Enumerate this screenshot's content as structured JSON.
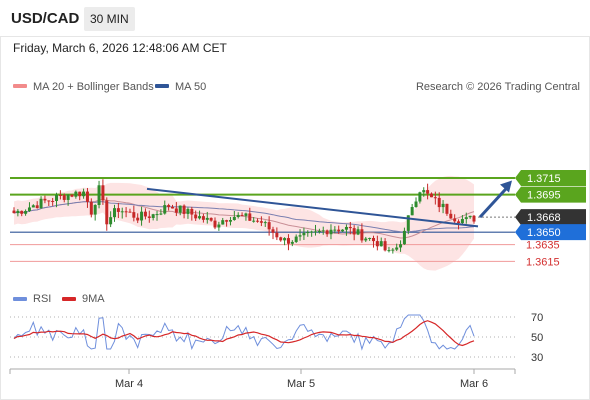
{
  "header": {
    "symbol": "USD/CAD",
    "timeframe": "30 MIN",
    "timestamp": "Friday, March 6, 2026 12:48:06 AM CET"
  },
  "legend": {
    "ma20_label": "MA 20 + Bollinger Bands",
    "ma50_label": "MA 50",
    "credit": "Research © 2026 Trading Central",
    "rsi_label": "RSI",
    "ma9_label": "9MA"
  },
  "colors": {
    "up_candle": "#2e8b2e",
    "down_candle": "#c62828",
    "bollinger_fill": "#fde4e4",
    "ma20": "#c98f96",
    "ma50": "#7a7fb0",
    "trendline": "#2f5597",
    "resistance": "#5aa51e",
    "support_blue": "#2f5597",
    "support_red": "#f19a9a",
    "rsi_line": "#6f8fdc",
    "rsi_ma": "#d62728",
    "current_price_badge": "#333333"
  },
  "chart_data": {
    "type": "candlestick",
    "price_axis_labels": [
      "1.3715",
      "1.3695",
      "1.3668",
      "1.3650",
      "1.3635",
      "1.3615"
    ],
    "levels": [
      {
        "price": 1.3715,
        "label": "1.3715",
        "kind": "resistance"
      },
      {
        "price": 1.3695,
        "label": "1.3695",
        "kind": "resistance"
      },
      {
        "price": 1.3668,
        "label": "1.3668",
        "kind": "current"
      },
      {
        "price": 1.365,
        "label": "1.3650",
        "kind": "pivot"
      },
      {
        "price": 1.3635,
        "label": "1.3635",
        "kind": "support"
      },
      {
        "price": 1.3615,
        "label": "1.3615",
        "kind": "support"
      }
    ],
    "y_range": [
      1.3595,
      1.3775
    ],
    "x_labels": [
      "Mar 4",
      "Mar 5",
      "Mar 6"
    ],
    "trendline": {
      "from": 1.3702,
      "to": 1.3657
    },
    "forecast_arrow": {
      "from": 1.3668,
      "to": 1.3712
    },
    "rsi": {
      "ticks": [
        "70",
        "50",
        "30"
      ],
      "range": [
        20,
        80
      ]
    }
  }
}
